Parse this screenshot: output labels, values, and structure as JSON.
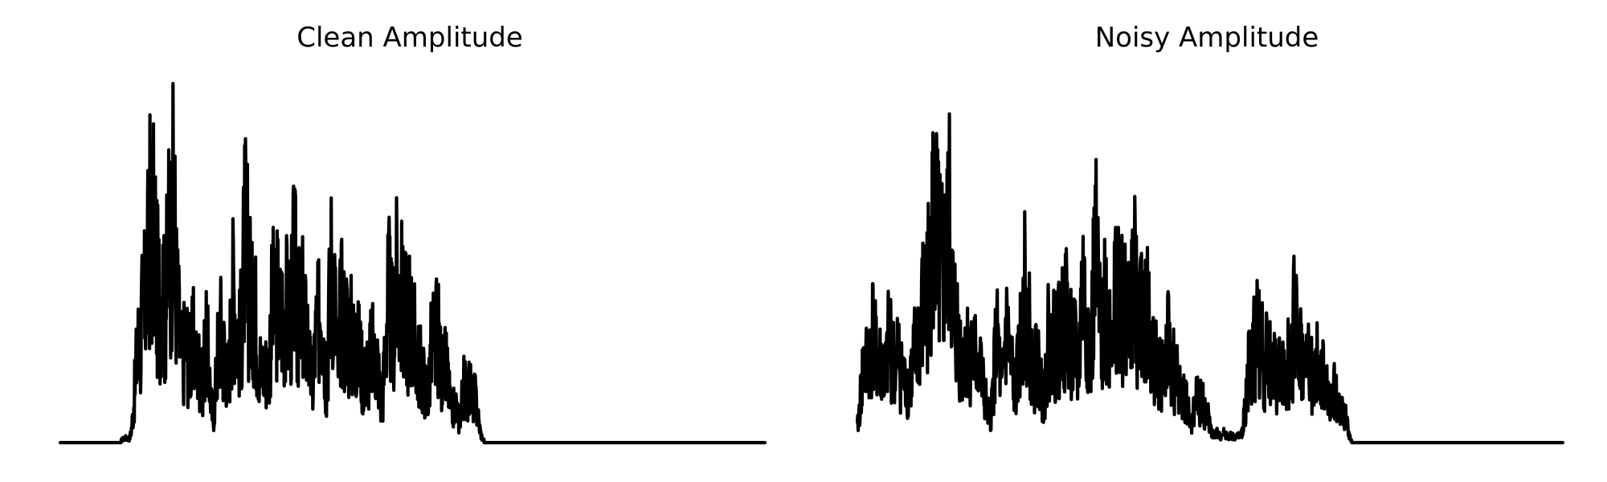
{
  "chart_data": [
    {
      "type": "line",
      "title": "Clean Amplitude",
      "axes_visible": false,
      "ylim": [
        0,
        1
      ],
      "peaks": [
        {
          "pos": 0.093,
          "h": 0.02
        },
        {
          "pos": 0.112,
          "h": 0.45
        },
        {
          "pos": 0.118,
          "h": 0.58
        },
        {
          "pos": 0.123,
          "h": 0.73
        },
        {
          "pos": 0.128,
          "h": 0.95
        },
        {
          "pos": 0.133,
          "h": 0.9
        },
        {
          "pos": 0.139,
          "h": 0.67
        },
        {
          "pos": 0.144,
          "h": 0.7
        },
        {
          "pos": 0.149,
          "h": 0.6
        },
        {
          "pos": 0.155,
          "h": 0.9
        },
        {
          "pos": 0.16,
          "h": 1.0
        },
        {
          "pos": 0.165,
          "h": 0.62
        },
        {
          "pos": 0.172,
          "h": 0.38
        },
        {
          "pos": 0.178,
          "h": 0.45
        },
        {
          "pos": 0.184,
          "h": 0.38
        },
        {
          "pos": 0.189,
          "h": 0.43
        },
        {
          "pos": 0.195,
          "h": 0.35
        },
        {
          "pos": 0.2,
          "h": 0.18
        },
        {
          "pos": 0.207,
          "h": 0.42
        },
        {
          "pos": 0.219,
          "h": 0.09
        },
        {
          "pos": 0.227,
          "h": 0.49
        },
        {
          "pos": 0.233,
          "h": 0.4
        },
        {
          "pos": 0.246,
          "h": 0.66
        },
        {
          "pos": 0.252,
          "h": 0.48
        },
        {
          "pos": 0.258,
          "h": 0.52
        },
        {
          "pos": 0.263,
          "h": 0.87
        },
        {
          "pos": 0.269,
          "h": 0.67
        },
        {
          "pos": 0.275,
          "h": 0.6
        },
        {
          "pos": 0.281,
          "h": 0.4
        },
        {
          "pos": 0.288,
          "h": 0.33
        },
        {
          "pos": 0.293,
          "h": 0.33
        },
        {
          "pos": 0.302,
          "h": 0.6
        },
        {
          "pos": 0.308,
          "h": 0.62
        },
        {
          "pos": 0.314,
          "h": 0.58
        },
        {
          "pos": 0.32,
          "h": 0.6
        },
        {
          "pos": 0.326,
          "h": 0.58
        },
        {
          "pos": 0.332,
          "h": 0.73
        },
        {
          "pos": 0.338,
          "h": 0.55
        },
        {
          "pos": 0.344,
          "h": 0.58
        },
        {
          "pos": 0.349,
          "h": 0.5
        },
        {
          "pos": 0.355,
          "h": 0.3
        },
        {
          "pos": 0.365,
          "h": 0.5
        },
        {
          "pos": 0.37,
          "h": 0.63
        },
        {
          "pos": 0.386,
          "h": 0.78
        },
        {
          "pos": 0.4,
          "h": 0.59
        },
        {
          "pos": 0.406,
          "h": 0.53
        },
        {
          "pos": 0.412,
          "h": 0.48
        },
        {
          "pos": 0.418,
          "h": 0.45
        },
        {
          "pos": 0.424,
          "h": 0.41
        },
        {
          "pos": 0.43,
          "h": 0.3
        },
        {
          "pos": 0.436,
          "h": 0.34
        },
        {
          "pos": 0.442,
          "h": 0.4
        },
        {
          "pos": 0.448,
          "h": 0.38
        },
        {
          "pos": 0.454,
          "h": 0.15
        },
        {
          "pos": 0.46,
          "h": 0.2
        },
        {
          "pos": 0.466,
          "h": 0.63
        },
        {
          "pos": 0.472,
          "h": 0.52
        },
        {
          "pos": 0.478,
          "h": 0.68
        },
        {
          "pos": 0.484,
          "h": 0.62
        },
        {
          "pos": 0.49,
          "h": 0.55
        },
        {
          "pos": 0.496,
          "h": 0.57
        },
        {
          "pos": 0.503,
          "h": 0.45
        },
        {
          "pos": 0.509,
          "h": 0.35
        },
        {
          "pos": 0.515,
          "h": 0.28
        },
        {
          "pos": 0.522,
          "h": 0.2
        },
        {
          "pos": 0.529,
          "h": 0.45
        },
        {
          "pos": 0.535,
          "h": 0.47
        },
        {
          "pos": 0.541,
          "h": 0.33
        },
        {
          "pos": 0.547,
          "h": 0.32
        },
        {
          "pos": 0.553,
          "h": 0.12
        },
        {
          "pos": 0.56,
          "h": 0.16
        },
        {
          "pos": 0.574,
          "h": 0.25
        },
        {
          "pos": 0.58,
          "h": 0.24
        },
        {
          "pos": 0.587,
          "h": 0.2
        },
        {
          "pos": 0.595,
          "h": 0.02
        },
        {
          "pos": 0.6,
          "h": 0.0
        }
      ]
    },
    {
      "type": "line",
      "title": "Noisy Amplitude",
      "axes_visible": false,
      "ylim": [
        0,
        1
      ],
      "peaks": [
        {
          "pos": 0.01,
          "h": 0.33
        },
        {
          "pos": 0.016,
          "h": 0.4
        },
        {
          "pos": 0.022,
          "h": 0.48
        },
        {
          "pos": 0.028,
          "h": 0.38
        },
        {
          "pos": 0.034,
          "h": 0.36
        },
        {
          "pos": 0.04,
          "h": 0.3
        },
        {
          "pos": 0.046,
          "h": 0.45
        },
        {
          "pos": 0.052,
          "h": 0.36
        },
        {
          "pos": 0.058,
          "h": 0.38
        },
        {
          "pos": 0.064,
          "h": 0.3
        },
        {
          "pos": 0.07,
          "h": 0.26
        },
        {
          "pos": 0.076,
          "h": 0.3
        },
        {
          "pos": 0.082,
          "h": 0.39
        },
        {
          "pos": 0.088,
          "h": 0.48
        },
        {
          "pos": 0.094,
          "h": 0.6
        },
        {
          "pos": 0.1,
          "h": 0.7
        },
        {
          "pos": 0.106,
          "h": 0.95
        },
        {
          "pos": 0.112,
          "h": 0.9
        },
        {
          "pos": 0.118,
          "h": 0.78
        },
        {
          "pos": 0.124,
          "h": 0.77
        },
        {
          "pos": 0.13,
          "h": 0.92
        },
        {
          "pos": 0.136,
          "h": 0.6
        },
        {
          "pos": 0.142,
          "h": 0.5
        },
        {
          "pos": 0.148,
          "h": 0.35
        },
        {
          "pos": 0.154,
          "h": 0.43
        },
        {
          "pos": 0.16,
          "h": 0.4
        },
        {
          "pos": 0.166,
          "h": 0.38
        },
        {
          "pos": 0.172,
          "h": 0.36
        },
        {
          "pos": 0.178,
          "h": 0.24
        },
        {
          "pos": 0.184,
          "h": 0.13
        },
        {
          "pos": 0.19,
          "h": 0.1
        },
        {
          "pos": 0.198,
          "h": 0.42
        },
        {
          "pos": 0.204,
          "h": 0.18
        },
        {
          "pos": 0.212,
          "h": 0.48
        },
        {
          "pos": 0.218,
          "h": 0.33
        },
        {
          "pos": 0.224,
          "h": 0.25
        },
        {
          "pos": 0.23,
          "h": 0.35
        },
        {
          "pos": 0.236,
          "h": 0.65
        },
        {
          "pos": 0.242,
          "h": 0.5
        },
        {
          "pos": 0.248,
          "h": 0.3
        },
        {
          "pos": 0.254,
          "h": 0.35
        },
        {
          "pos": 0.26,
          "h": 0.25
        },
        {
          "pos": 0.266,
          "h": 0.2
        },
        {
          "pos": 0.272,
          "h": 0.45
        },
        {
          "pos": 0.278,
          "h": 0.47
        },
        {
          "pos": 0.284,
          "h": 0.46
        },
        {
          "pos": 0.29,
          "h": 0.5
        },
        {
          "pos": 0.296,
          "h": 0.56
        },
        {
          "pos": 0.302,
          "h": 0.45
        },
        {
          "pos": 0.308,
          "h": 0.4
        },
        {
          "pos": 0.314,
          "h": 0.32
        },
        {
          "pos": 0.32,
          "h": 0.65
        },
        {
          "pos": 0.326,
          "h": 0.5
        },
        {
          "pos": 0.332,
          "h": 0.4
        },
        {
          "pos": 0.338,
          "h": 0.78
        },
        {
          "pos": 0.344,
          "h": 0.5
        },
        {
          "pos": 0.35,
          "h": 0.65
        },
        {
          "pos": 0.356,
          "h": 0.53
        },
        {
          "pos": 0.362,
          "h": 0.58
        },
        {
          "pos": 0.368,
          "h": 0.72
        },
        {
          "pos": 0.374,
          "h": 0.58
        },
        {
          "pos": 0.38,
          "h": 0.55
        },
        {
          "pos": 0.386,
          "h": 0.6
        },
        {
          "pos": 0.392,
          "h": 0.7
        },
        {
          "pos": 0.398,
          "h": 0.6
        },
        {
          "pos": 0.404,
          "h": 0.7
        },
        {
          "pos": 0.41,
          "h": 0.58
        },
        {
          "pos": 0.416,
          "h": 0.42
        },
        {
          "pos": 0.422,
          "h": 0.4
        },
        {
          "pos": 0.428,
          "h": 0.32
        },
        {
          "pos": 0.434,
          "h": 0.36
        },
        {
          "pos": 0.44,
          "h": 0.42
        },
        {
          "pos": 0.446,
          "h": 0.35
        },
        {
          "pos": 0.452,
          "h": 0.3
        },
        {
          "pos": 0.458,
          "h": 0.22
        },
        {
          "pos": 0.464,
          "h": 0.2
        },
        {
          "pos": 0.47,
          "h": 0.1
        },
        {
          "pos": 0.476,
          "h": 0.07
        },
        {
          "pos": 0.482,
          "h": 0.2
        },
        {
          "pos": 0.488,
          "h": 0.18
        },
        {
          "pos": 0.494,
          "h": 0.13
        },
        {
          "pos": 0.5,
          "h": 0.05
        },
        {
          "pos": 0.51,
          "h": 0.04
        },
        {
          "pos": 0.52,
          "h": 0.04
        },
        {
          "pos": 0.53,
          "h": 0.03
        },
        {
          "pos": 0.54,
          "h": 0.03
        },
        {
          "pos": 0.55,
          "h": 0.02
        },
        {
          "pos": 0.556,
          "h": 0.33
        },
        {
          "pos": 0.562,
          "h": 0.43
        },
        {
          "pos": 0.568,
          "h": 0.48
        },
        {
          "pos": 0.574,
          "h": 0.4
        },
        {
          "pos": 0.58,
          "h": 0.38
        },
        {
          "pos": 0.586,
          "h": 0.35
        },
        {
          "pos": 0.592,
          "h": 0.32
        },
        {
          "pos": 0.598,
          "h": 0.3
        },
        {
          "pos": 0.604,
          "h": 0.28
        },
        {
          "pos": 0.61,
          "h": 0.37
        },
        {
          "pos": 0.616,
          "h": 0.4
        },
        {
          "pos": 0.622,
          "h": 0.6
        },
        {
          "pos": 0.628,
          "h": 0.4
        },
        {
          "pos": 0.634,
          "h": 0.32
        },
        {
          "pos": 0.64,
          "h": 0.38
        },
        {
          "pos": 0.646,
          "h": 0.28
        },
        {
          "pos": 0.652,
          "h": 0.33
        },
        {
          "pos": 0.658,
          "h": 0.3
        },
        {
          "pos": 0.664,
          "h": 0.24
        },
        {
          "pos": 0.67,
          "h": 0.18
        },
        {
          "pos": 0.676,
          "h": 0.22
        },
        {
          "pos": 0.682,
          "h": 0.15
        },
        {
          "pos": 0.688,
          "h": 0.14
        }
      ]
    }
  ]
}
